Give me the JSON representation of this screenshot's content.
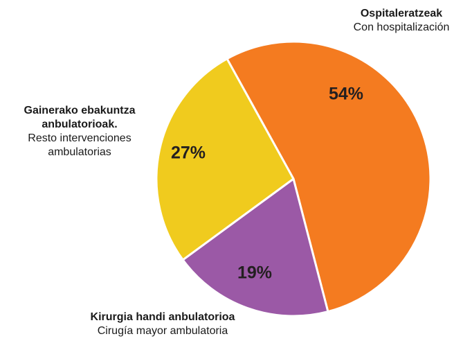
{
  "chart_data": {
    "type": "pie",
    "categories": [
      "Ospitaleratzeak",
      "Kirurgia handi anbulatorioa",
      "Gainerako ebakuntza anbulatorioak."
    ],
    "sublabels": [
      "Con hospitalización",
      "Cirugía mayor ambulatoria",
      "Resto intervenciones ambulatorias"
    ],
    "values": [
      54,
      19,
      27
    ],
    "value_labels": [
      "54%",
      "19%",
      "27%"
    ],
    "colors": [
      "#f47b20",
      "#9b59a6",
      "#f0cb1e"
    ]
  }
}
